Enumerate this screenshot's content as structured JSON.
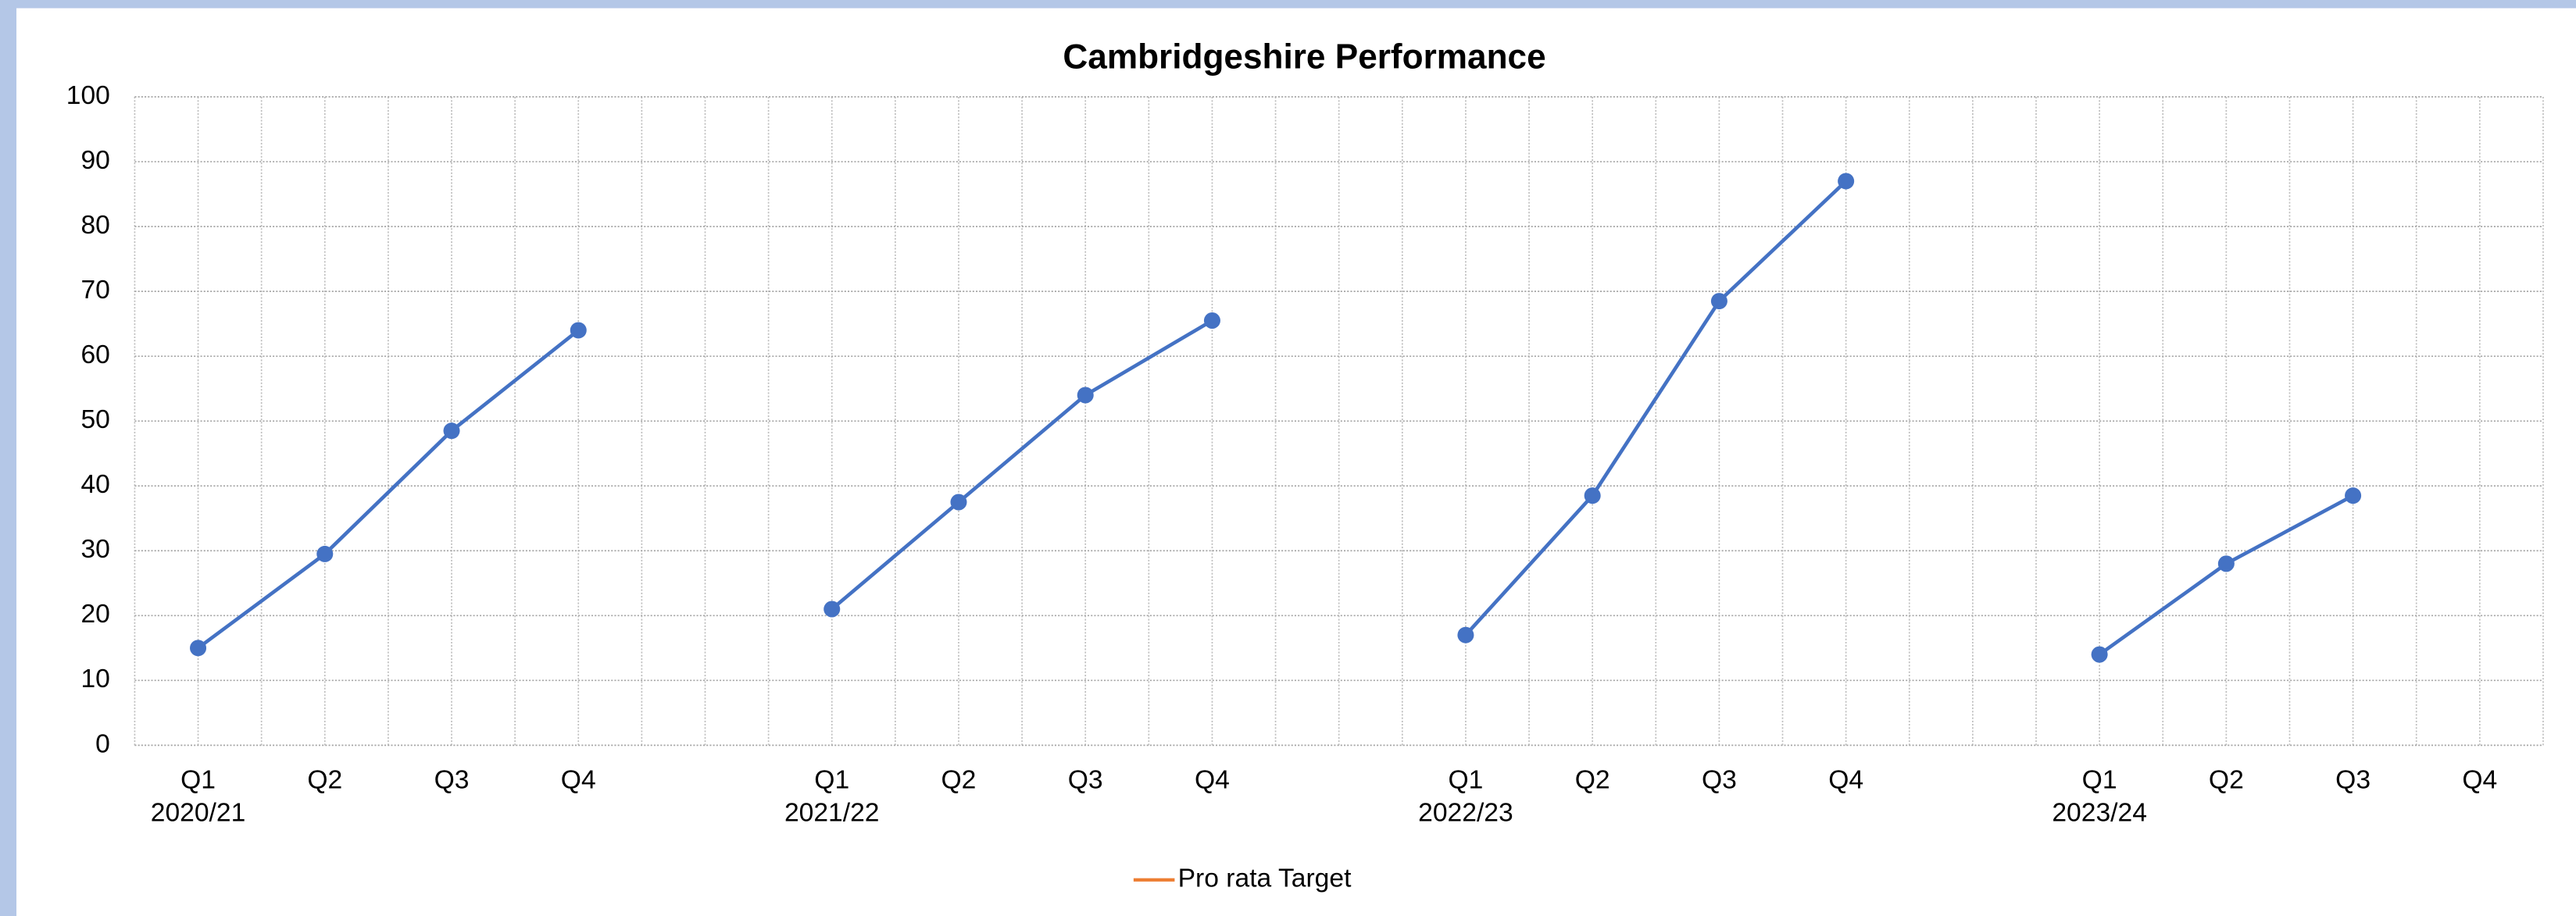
{
  "chart_data": {
    "type": "line",
    "title": "Cambridgeshire Performance",
    "categories": [
      "Q1",
      "Q2",
      "Q3",
      "Q4",
      null,
      "Q1",
      "Q2",
      "Q3",
      "Q4",
      null,
      "Q1",
      "Q2",
      "Q3",
      "Q4",
      null,
      "Q1",
      "Q2",
      "Q3",
      "Q4"
    ],
    "category_groups": [
      "2020/21",
      null,
      null,
      null,
      null,
      "2021/22",
      null,
      null,
      null,
      null,
      "2022/23",
      null,
      null,
      null,
      null,
      "2023/24",
      null,
      null,
      null
    ],
    "series": [
      {
        "color": "#4472c4",
        "values": [
          15,
          29.5,
          48.5,
          64,
          null,
          21,
          37.5,
          54,
          65.5,
          null,
          17,
          38.5,
          68.5,
          87,
          null,
          14,
          28,
          38.5,
          null
        ]
      },
      {
        "name": "Pro rata Target",
        "color": "#ed7d31",
        "values": [
          null,
          null,
          null,
          null,
          null,
          null,
          null,
          null,
          null,
          null,
          null,
          null,
          null,
          null,
          null,
          null,
          null,
          null,
          null
        ]
      }
    ],
    "ylim": [
      0,
      100
    ],
    "yticks": [
      0,
      10,
      20,
      30,
      40,
      50,
      60,
      70,
      80,
      90,
      100
    ],
    "grid": true,
    "legend": "bottom"
  }
}
